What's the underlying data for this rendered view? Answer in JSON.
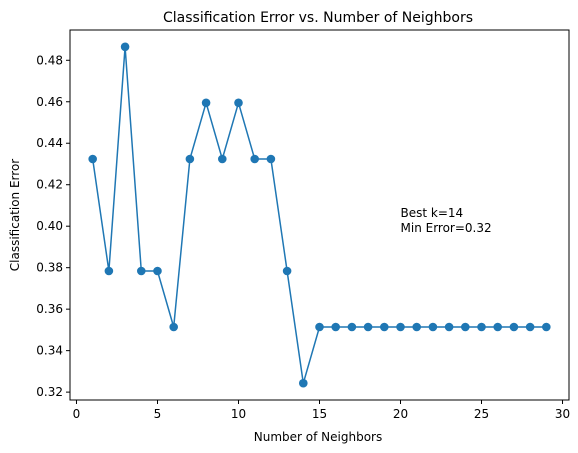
{
  "chart_data": {
    "type": "line",
    "title": "Classification Error vs. Number of Neighbors",
    "xlabel": "Number of Neighbors",
    "ylabel": "Classification Error",
    "xlim": [
      -0.4,
      30.4
    ],
    "ylim": [
      0.3162,
      0.4946
    ],
    "xticks": [
      0,
      5,
      10,
      15,
      20,
      25,
      30
    ],
    "yticks": [
      0.32,
      0.34,
      0.36,
      0.38,
      0.4,
      0.42,
      0.44,
      0.46,
      0.48
    ],
    "ytick_labels": [
      "0.32",
      "0.34",
      "0.36",
      "0.38",
      "0.40",
      "0.42",
      "0.44",
      "0.46",
      "0.48"
    ],
    "grid": false,
    "series": [
      {
        "color": "#1f77b4",
        "marker": "circle",
        "x": [
          1,
          2,
          3,
          4,
          5,
          6,
          7,
          8,
          9,
          10,
          11,
          12,
          13,
          14,
          15,
          16,
          17,
          18,
          19,
          20,
          21,
          22,
          23,
          24,
          25,
          26,
          27,
          28,
          29
        ],
        "y": [
          0.4324,
          0.3784,
          0.4865,
          0.3784,
          0.3784,
          0.3514,
          0.4324,
          0.4595,
          0.4324,
          0.4595,
          0.4324,
          0.4324,
          0.3784,
          0.3243,
          0.3514,
          0.3514,
          0.3514,
          0.3514,
          0.3514,
          0.3514,
          0.3514,
          0.3514,
          0.3514,
          0.3514,
          0.3514,
          0.3514,
          0.3514,
          0.3514,
          0.3514
        ]
      }
    ],
    "annotations": [
      {
        "lines": [
          "Best k=14",
          "Min Error=0.32"
        ],
        "x": 20,
        "y": 0.4045
      }
    ]
  }
}
